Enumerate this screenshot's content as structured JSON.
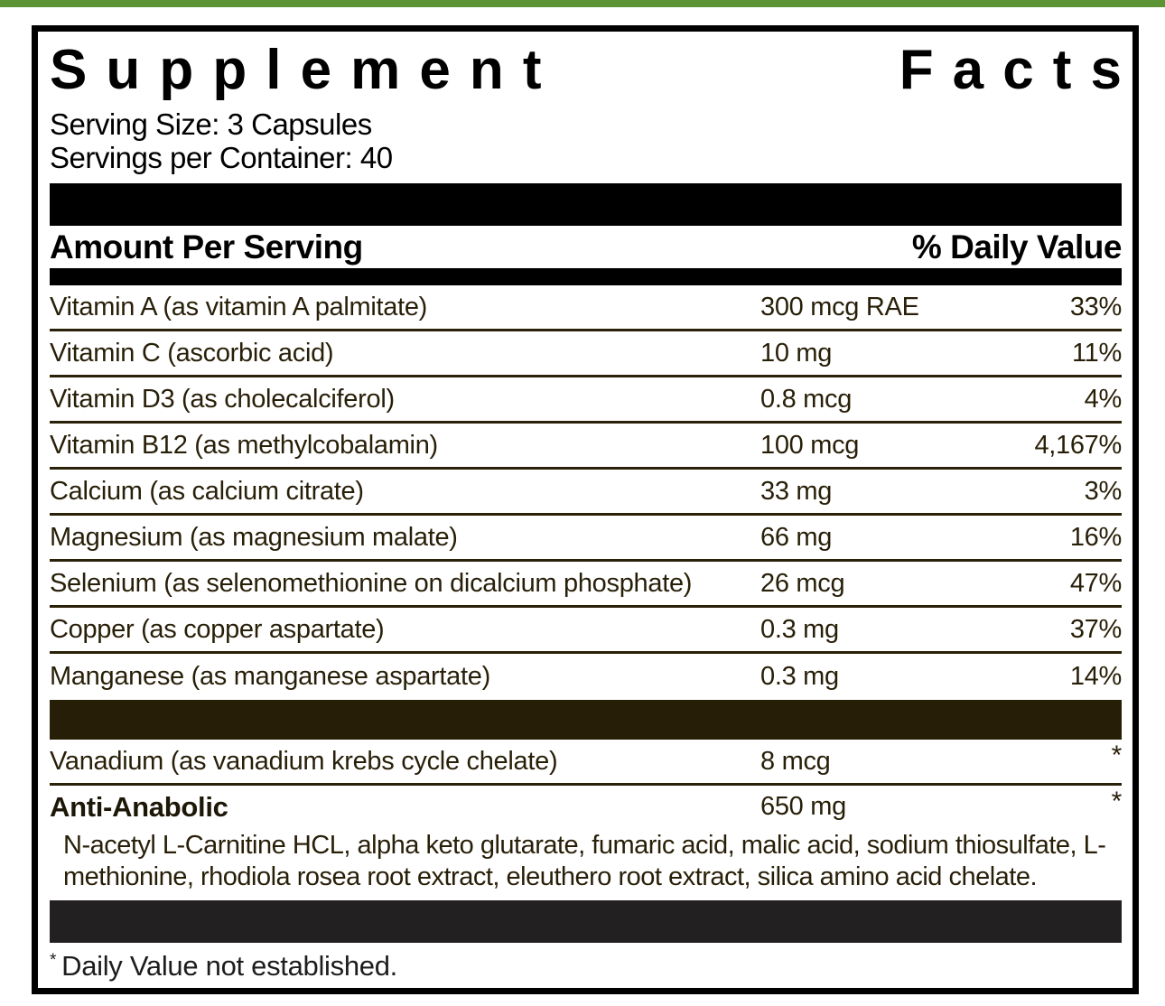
{
  "accent": {
    "green": "#5b9335",
    "ink": "#000000",
    "brown_ink": "#281f08",
    "brown_bar": "#271e08",
    "dark_bar": "#232021"
  },
  "label": {
    "title_word1": "Supplement",
    "title_word2": "Facts",
    "serving_size": "Serving Size: 3 Capsules",
    "servings_per_container": "Servings per Container: 40",
    "header": {
      "amount": "Amount Per Serving",
      "daily_value": "% Daily Value"
    },
    "rows": [
      {
        "name": "Vitamin A (as vitamin A palmitate)",
        "amount": "300 mcg RAE",
        "dv": "33%"
      },
      {
        "name": "Vitamin C (ascorbic acid)",
        "amount": "10 mg",
        "dv": "11%"
      },
      {
        "name": "Vitamin D3 (as cholecalciferol)",
        "amount": "0.8 mcg",
        "dv": "4%"
      },
      {
        "name": "Vitamin B12 (as methylcobalamin)",
        "amount": "100 mcg",
        "dv": "4,167%"
      },
      {
        "name": "Calcium (as calcium citrate)",
        "amount": "33 mg",
        "dv": "3%"
      },
      {
        "name": "Magnesium (as magnesium malate)",
        "amount": "66 mg",
        "dv": "16%"
      },
      {
        "name": "Selenium (as selenomethionine on dicalcium phosphate)",
        "amount": "26 mcg",
        "dv": "47%"
      },
      {
        "name": "Copper (as copper aspartate)",
        "amount": "0.3 mg",
        "dv": "37%"
      },
      {
        "name": "Manganese (as manganese aspartate)",
        "amount": "0.3 mg",
        "dv": "14%"
      }
    ],
    "vanadium_row": {
      "name": "Vanadium (as vanadium krebs cycle chelate)",
      "amount": "8 mcg",
      "dv": "*"
    },
    "blend": {
      "name": "Anti-Anabolic",
      "amount": "650 mg",
      "dv": "*",
      "ingredients": "N-acetyl L-Carnitine HCL, alpha keto glutarate, fumaric acid, malic acid, sodium thiosulfate, L-methionine, rhodiola rosea root extract, eleuthero root extract, silica amino acid chelate."
    },
    "footnote": {
      "symbol": "*",
      "text": "Daily Value not established."
    }
  }
}
